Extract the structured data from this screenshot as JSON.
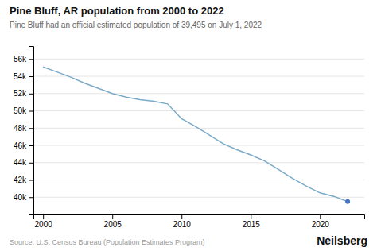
{
  "chart_data": {
    "type": "line",
    "title": "Pine Bluff, AR population from 2000 to 2022",
    "subtitle": "Pine Bluff had an official estimated population of 39,495 on July 1, 2022",
    "source": "Source: U.S. Census Bureau (Population Estimates Program)",
    "watermark": "Neilsberg",
    "x": [
      2000,
      2001,
      2002,
      2003,
      2004,
      2005,
      2006,
      2007,
      2008,
      2009,
      2010,
      2011,
      2012,
      2013,
      2014,
      2015,
      2016,
      2017,
      2018,
      2019,
      2020,
      2021,
      2022
    ],
    "series": [
      {
        "type": "line",
        "color": "#7aaac8",
        "values": [
          55085,
          54495,
          53905,
          53200,
          52600,
          52000,
          51600,
          51300,
          51100,
          50800,
          49083,
          48200,
          47200,
          46200,
          45500,
          44900,
          44200,
          43200,
          42200,
          41300,
          40500,
          40100,
          39495
        ]
      },
      {
        "type": "scatter",
        "color": "#4472c4",
        "values": [
          null,
          null,
          null,
          null,
          null,
          null,
          null,
          null,
          null,
          null,
          null,
          null,
          null,
          null,
          null,
          null,
          null,
          null,
          null,
          null,
          null,
          null,
          39495
        ]
      }
    ],
    "xlim": [
      1999.3,
      2023.2
    ],
    "xticks": [
      2000,
      2005,
      2010,
      2015,
      2020
    ],
    "ylim": [
      38000,
      57500
    ],
    "yticks": [
      {
        "value": 40000,
        "label": "40k"
      },
      {
        "value": 42000,
        "label": "42k"
      },
      {
        "value": 44000,
        "label": "44k"
      },
      {
        "value": 46000,
        "label": "46k"
      },
      {
        "value": 48000,
        "label": "48k"
      },
      {
        "value": 50000,
        "label": "50k"
      },
      {
        "value": 52000,
        "label": "52k"
      },
      {
        "value": 54000,
        "label": "54k"
      },
      {
        "value": 56000,
        "label": "56k"
      }
    ],
    "grid": true
  }
}
